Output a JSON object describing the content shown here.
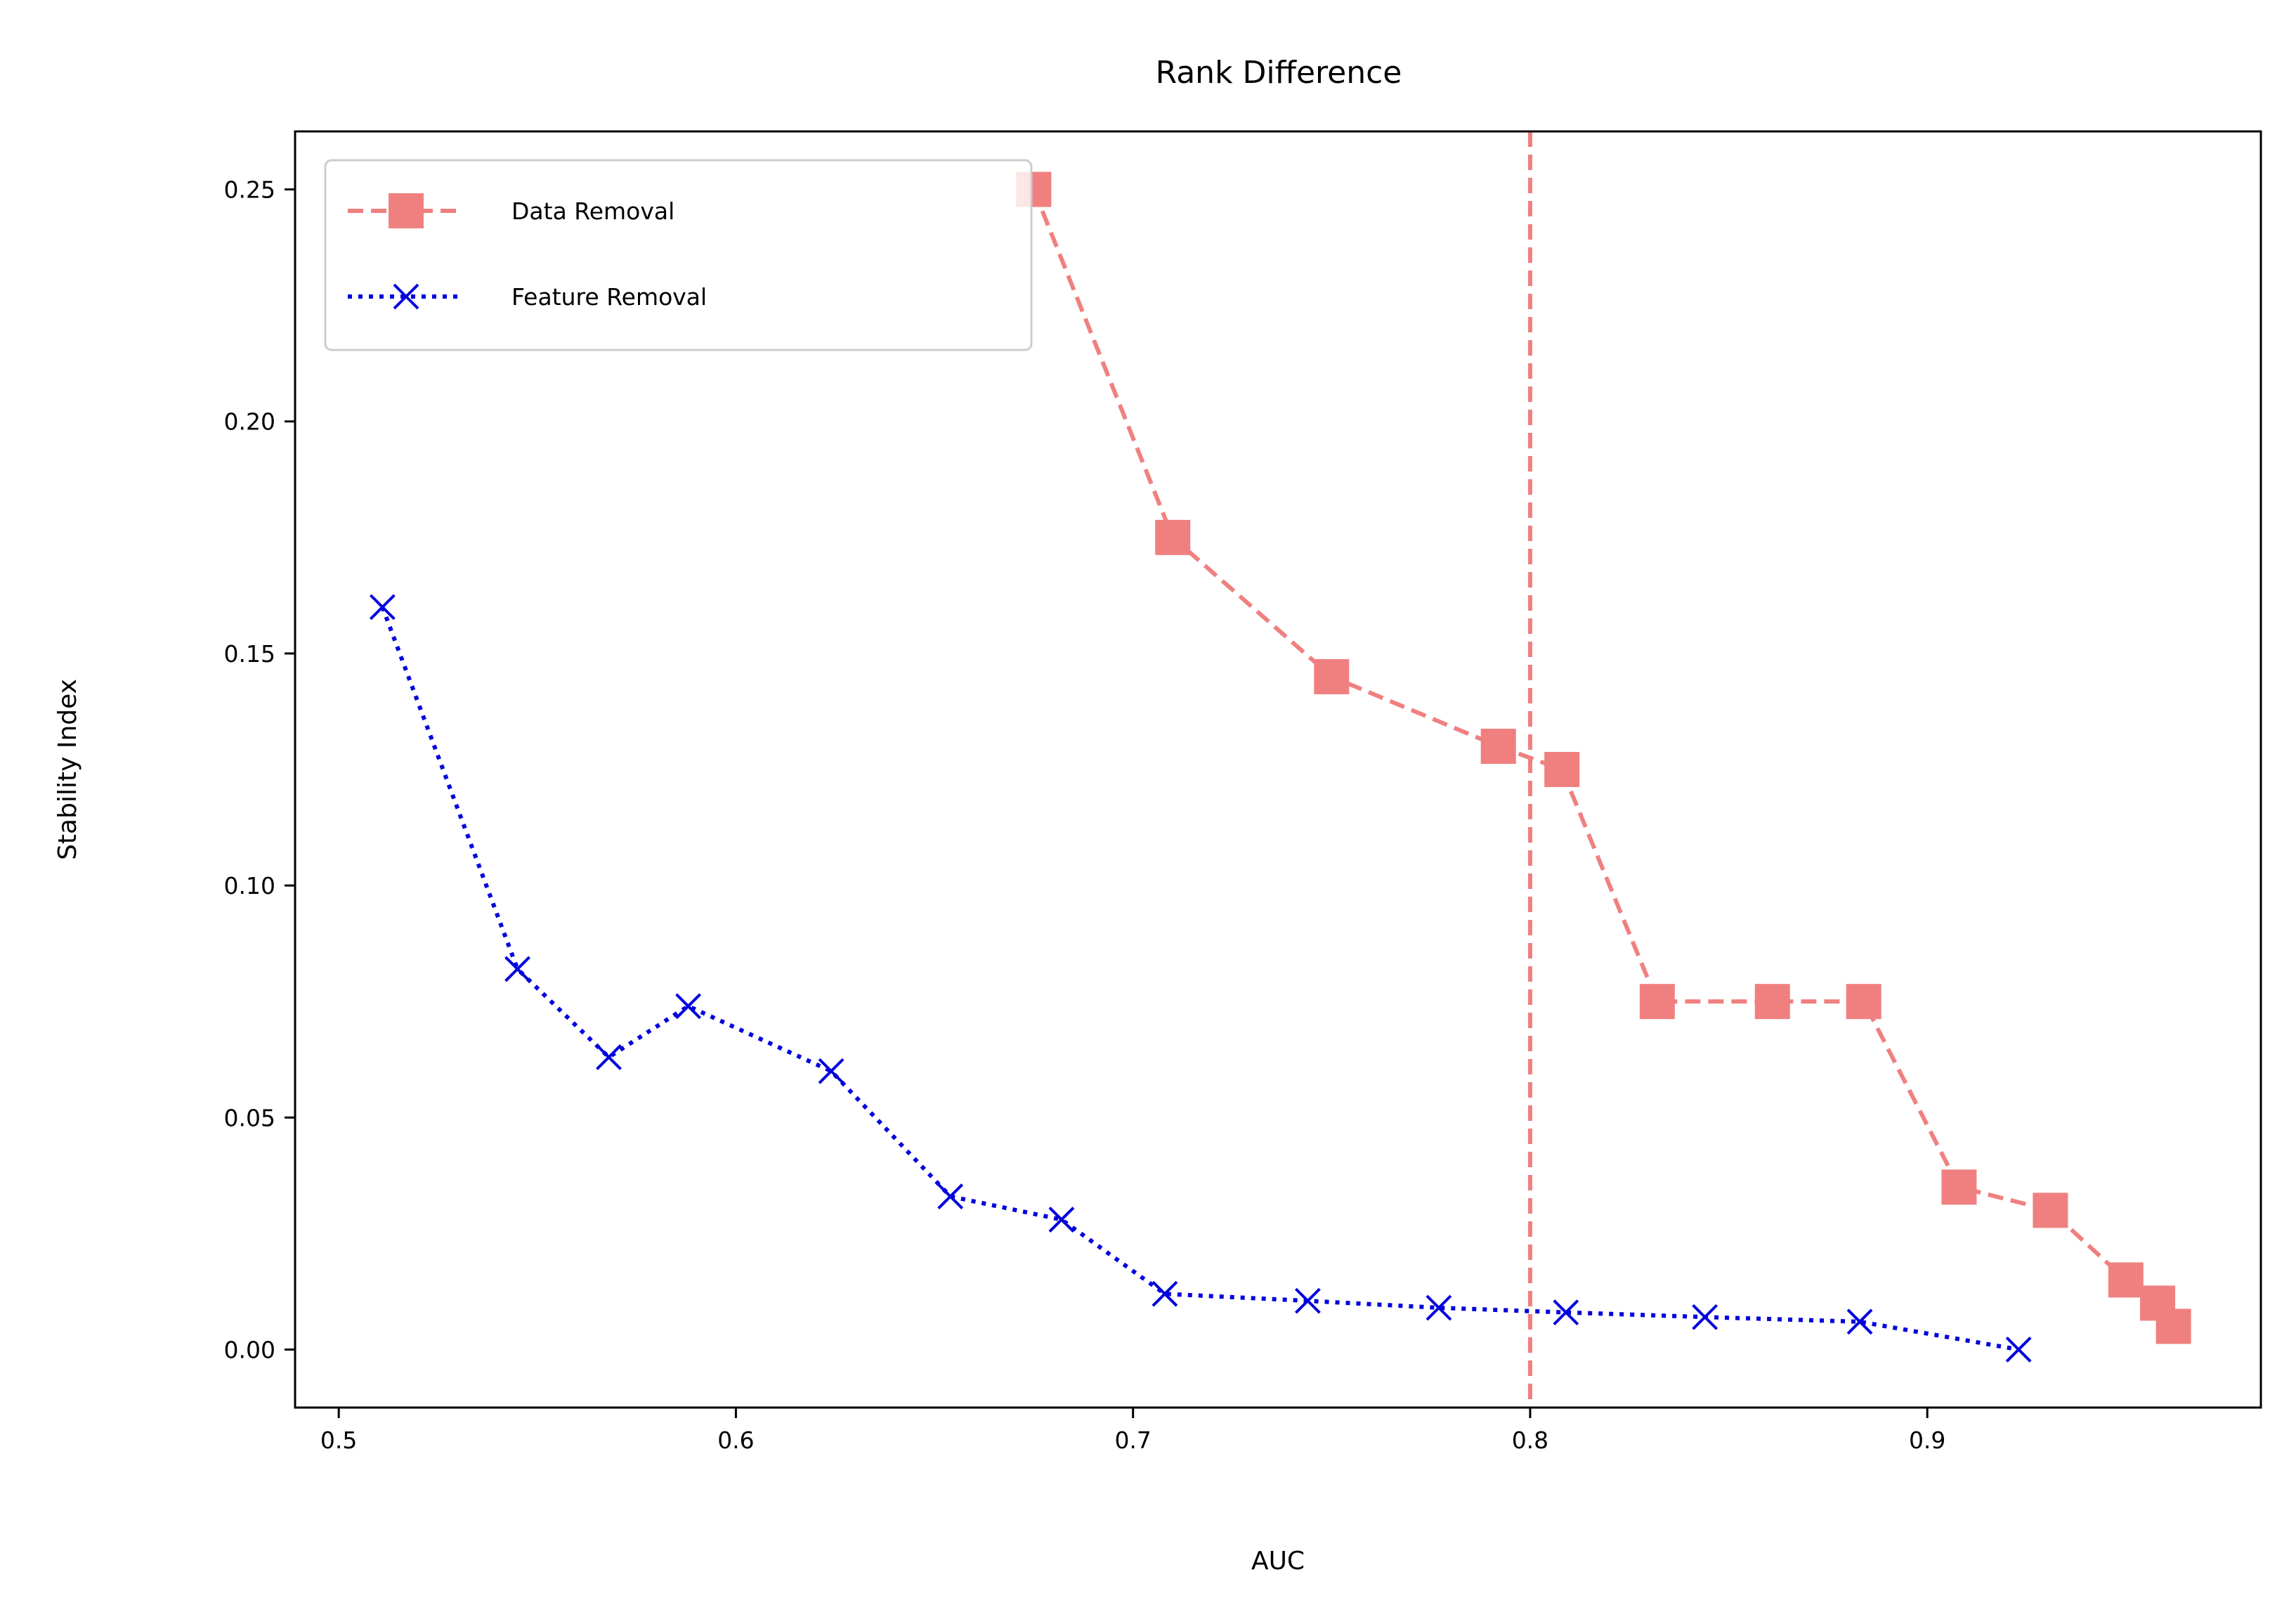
{
  "chart_data": {
    "type": "line",
    "title": "Rank Difference",
    "xlabel": "AUC",
    "ylabel": "Stability Index",
    "xlim": [
      0.489,
      0.984
    ],
    "ylim": [
      -0.0125,
      0.2625
    ],
    "xticks": [
      0.5,
      0.6,
      0.7,
      0.8,
      0.9
    ],
    "xtick_labels": [
      "0.5",
      "0.6",
      "0.7",
      "0.8",
      "0.9"
    ],
    "yticks": [
      0.0,
      0.05,
      0.1,
      0.15,
      0.2,
      0.25
    ],
    "ytick_labels": [
      "0.00",
      "0.05",
      "0.10",
      "0.15",
      "0.20",
      "0.25"
    ],
    "grid": false,
    "legend_position": "top-left",
    "vline": {
      "x": 0.8,
      "color": "#f08080",
      "style": "dashed"
    },
    "series": [
      {
        "name": "Data Removal",
        "color": "#f08080",
        "line_style": "dashed",
        "marker": "square",
        "x": [
          0.675,
          0.71,
          0.75,
          0.792,
          0.808,
          0.832,
          0.861,
          0.884,
          0.908,
          0.931,
          0.95,
          0.958,
          0.962
        ],
        "y": [
          0.25,
          0.175,
          0.145,
          0.13,
          0.125,
          0.075,
          0.075,
          0.075,
          0.035,
          0.03,
          0.015,
          0.01,
          0.005
        ]
      },
      {
        "name": "Feature Removal",
        "color": "#0000dd",
        "line_style": "dotted",
        "marker": "x",
        "x": [
          0.511,
          0.545,
          0.568,
          0.588,
          0.624,
          0.654,
          0.682,
          0.708,
          0.744,
          0.777,
          0.809,
          0.844,
          0.883,
          0.923
        ],
        "y": [
          0.16,
          0.082,
          0.063,
          0.074,
          0.06,
          0.033,
          0.028,
          0.012,
          0.0105,
          0.009,
          0.008,
          0.007,
          0.006,
          0.0
        ]
      }
    ]
  }
}
